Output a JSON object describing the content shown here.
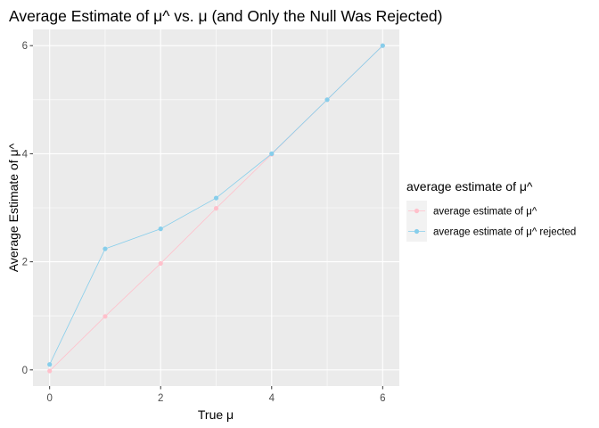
{
  "chart_data": {
    "type": "line",
    "title": "Average Estimate of μ^ vs. μ (and Only the Null Was Rejected)",
    "xlabel": "True μ",
    "ylabel": "Average Estimate of μ^",
    "x": [
      0,
      1,
      2,
      3,
      4,
      5,
      6
    ],
    "xlim": [
      -0.3,
      6.3
    ],
    "ylim": [
      -0.3,
      6.3
    ],
    "xticks": [
      0,
      2,
      4,
      6
    ],
    "yticks": [
      0,
      2,
      4,
      6
    ],
    "grid": true,
    "legend": {
      "title": "average estimate of μ^",
      "position": "right"
    },
    "series": [
      {
        "name": "average estimate of μ^",
        "color": "#ffc0cb",
        "values": [
          -0.02,
          0.99,
          1.97,
          2.99,
          3.99,
          5.0,
          6.0
        ]
      },
      {
        "name": "average estimate of μ^ rejected",
        "color": "#87ceeb",
        "values": [
          0.1,
          2.24,
          2.61,
          3.18,
          4.0,
          5.0,
          6.0
        ]
      }
    ]
  },
  "colors": {
    "panel_background": "#ebebeb",
    "grid_major": "#ffffff",
    "tick_text": "#4d4d4d"
  }
}
